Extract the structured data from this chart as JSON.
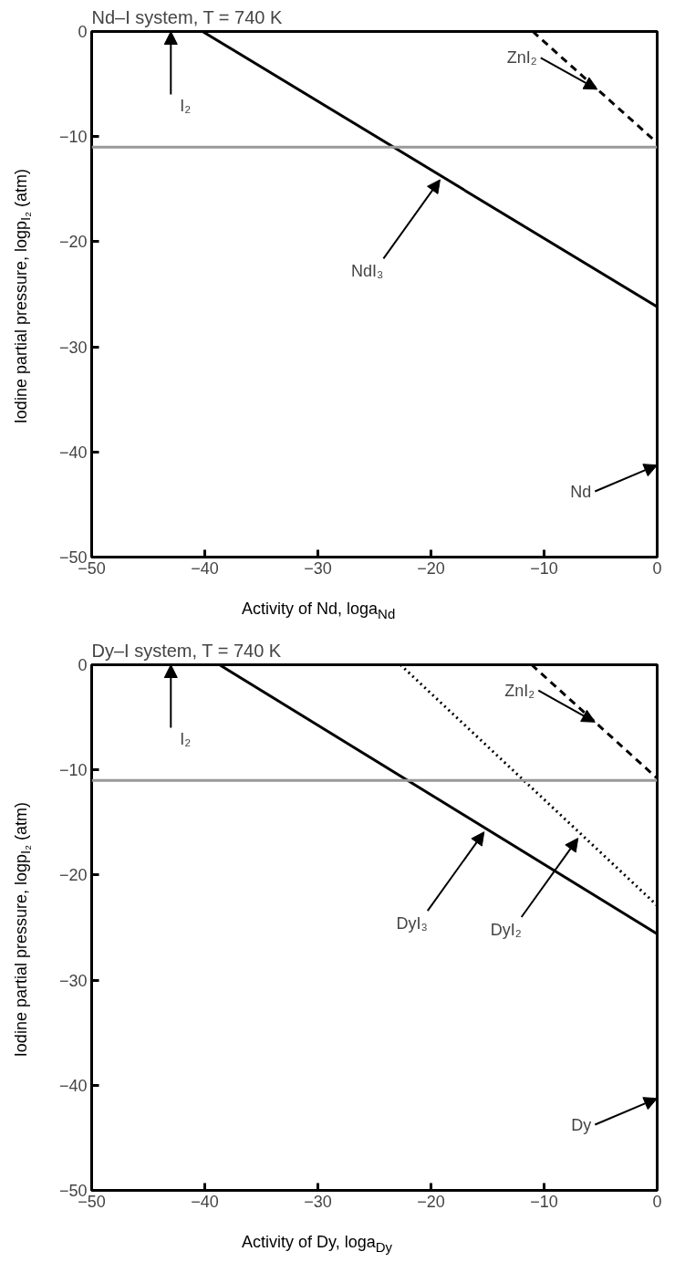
{
  "chart_data": [
    {
      "type": "line",
      "title": "Nd–I system, T = 740 K",
      "xlabel": "Activity of Nd, loga$_{Nd}$",
      "ylabel": "Iodine partial pressure, logp$_{I₂}$ (atm)",
      "xlim": [
        -50,
        0
      ],
      "ylim": [
        -50,
        0
      ],
      "xticks": [
        -50,
        -40,
        -30,
        -20,
        -10,
        0
      ],
      "yticks": [
        -50,
        -40,
        -30,
        -20,
        -10,
        0
      ],
      "grid": false,
      "marker": "none",
      "series": [
        {
          "color": "#000000",
          "line_style": "solid",
          "x": [
            -40.2,
            0
          ],
          "values": [
            0,
            -26.2
          ]
        },
        {
          "color": "#000000",
          "line_style": "dashed",
          "x": [
            -11.0,
            0
          ],
          "values": [
            0,
            -10.6
          ]
        }
      ],
      "ref_lines": [
        {
          "axis": "y",
          "value": -11,
          "color": "#999999"
        }
      ],
      "annotations": [
        {
          "text": "ZnI₂",
          "x": -5.3,
          "y": -5.5
        },
        {
          "text": "NdI₃",
          "x": -19.2,
          "y": -14.1
        },
        "I₂",
        "Nd"
      ]
    },
    {
      "type": "line",
      "title": "Dy–I system, T = 740 K",
      "xlabel": "Activity of Dy, loga$_{Dy}$",
      "ylabel": "Iodine partial pressure, logp$_{I₂}$ (atm)",
      "xlim": [
        -50,
        0
      ],
      "ylim": [
        -50,
        0
      ],
      "xticks": [
        -50,
        -40,
        -30,
        -20,
        -10,
        0
      ],
      "yticks": [
        -50,
        -40,
        -30,
        -20,
        -10,
        0
      ],
      "grid": false,
      "marker": "none",
      "series": [
        {
          "color": "#000000",
          "line_style": "solid",
          "x": [
            -38.7,
            0
          ],
          "values": [
            0,
            -25.6
          ]
        },
        {
          "color": "#000000",
          "line_style": "dotted",
          "x": [
            -22.7,
            0
          ],
          "values": [
            0,
            -22.9
          ]
        },
        {
          "color": "#000000",
          "line_style": "dashed",
          "x": [
            -11.1,
            0
          ],
          "values": [
            0,
            -10.8
          ]
        }
      ],
      "ref_lines": [
        {
          "axis": "y",
          "value": -11,
          "color": "#999999"
        }
      ],
      "annotations": [
        {
          "text": "ZnI₂",
          "x": -5.5,
          "y": -5.45
        },
        {
          "text": "DyI₂",
          "x": -7.0,
          "y": -16.5
        },
        {
          "text": "DyI₃",
          "x": -15.3,
          "y": -15.9
        },
        "I₂",
        "Dy"
      ]
    }
  ]
}
